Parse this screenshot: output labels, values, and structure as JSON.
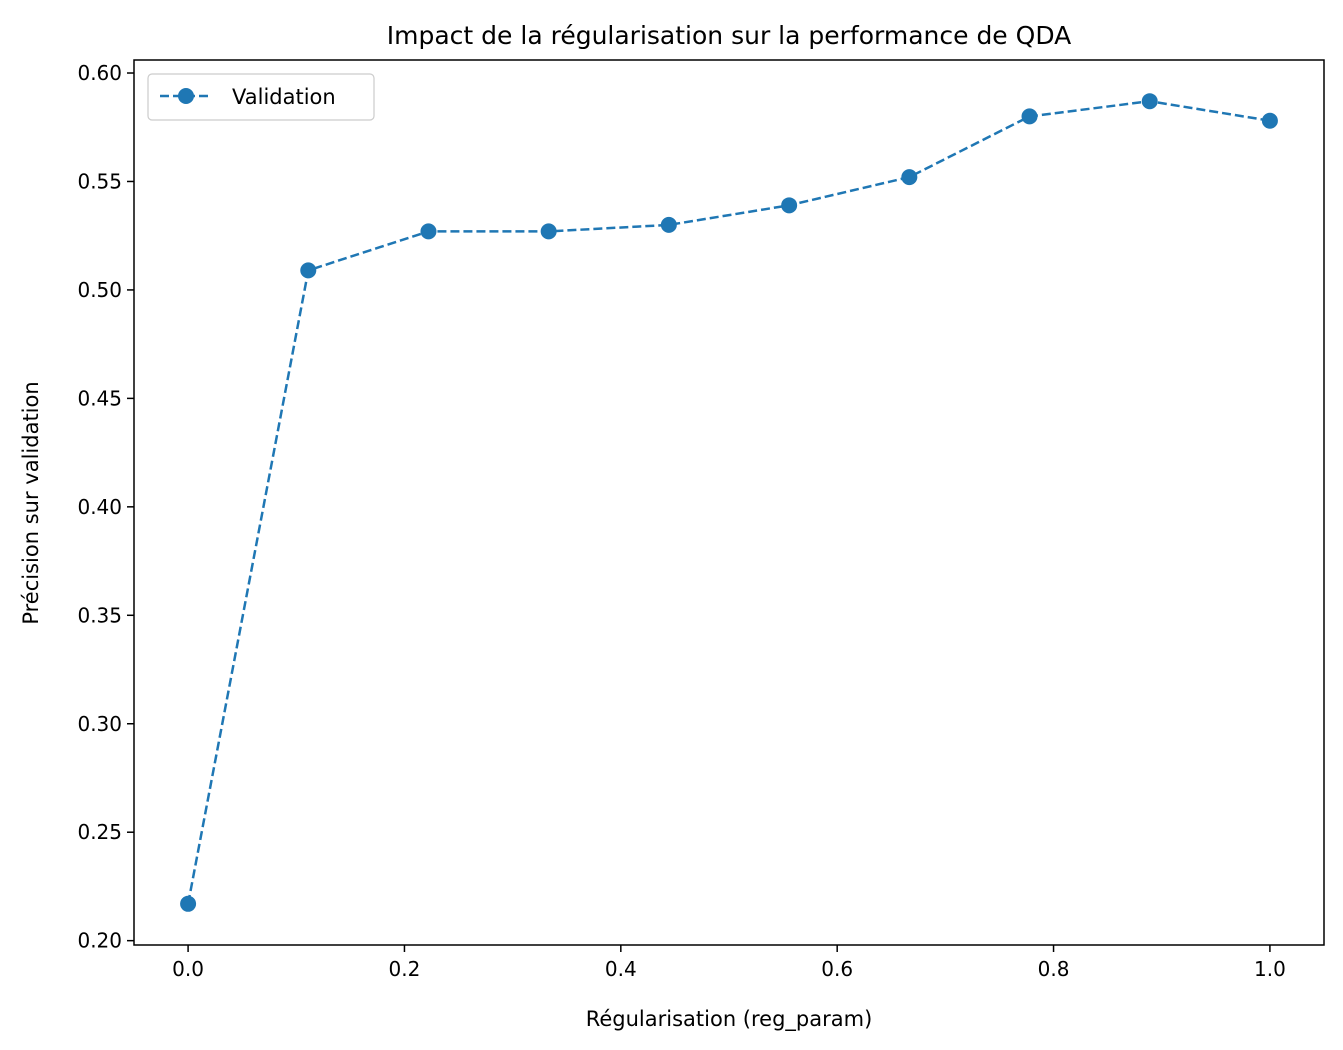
{
  "chart_data": {
    "type": "line",
    "title": "Impact de la régularisation sur la performance de QDA",
    "xlabel": "Régularisation (reg_param)",
    "ylabel": "Précision sur validation",
    "xlim": [
      -0.05,
      1.05
    ],
    "ylim": [
      0.198,
      0.606
    ],
    "xticks": [
      0.0,
      0.2,
      0.4,
      0.6,
      0.8,
      1.0
    ],
    "xtick_labels": [
      "0.0",
      "0.2",
      "0.4",
      "0.6",
      "0.8",
      "1.0"
    ],
    "yticks": [
      0.2,
      0.25,
      0.3,
      0.35,
      0.4,
      0.45,
      0.5,
      0.55,
      0.6
    ],
    "ytick_labels": [
      "0.20",
      "0.25",
      "0.30",
      "0.35",
      "0.40",
      "0.45",
      "0.50",
      "0.55",
      "0.60"
    ],
    "grid": false,
    "legend_position": "top-left",
    "series": [
      {
        "name": "Validation",
        "color": "#1f77b4",
        "line_style": "dashed",
        "marker": "circle",
        "x": [
          0.0,
          0.1111,
          0.2222,
          0.3333,
          0.4444,
          0.5556,
          0.6667,
          0.7778,
          0.8889,
          1.0
        ],
        "y": [
          0.217,
          0.509,
          0.527,
          0.527,
          0.53,
          0.539,
          0.552,
          0.58,
          0.587,
          0.578
        ]
      }
    ]
  }
}
